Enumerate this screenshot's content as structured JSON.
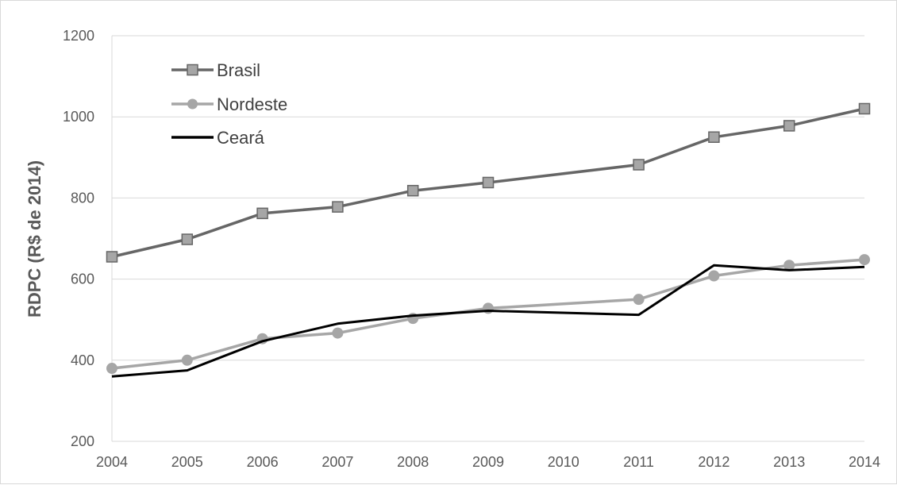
{
  "chart_data": {
    "type": "line",
    "xlabel": "",
    "ylabel": "RDPC (R$ de 2014)",
    "x": [
      2004,
      2005,
      2006,
      2007,
      2008,
      2009,
      2010,
      2011,
      2012,
      2013,
      2014
    ],
    "ylim": [
      200,
      1200
    ],
    "yticks": [
      200,
      400,
      600,
      800,
      1000,
      1200
    ],
    "grid": "horizontal",
    "legend_position": "top-left",
    "series": [
      {
        "name": "Brasil",
        "color": "#666666",
        "marker": "square",
        "x": [
          2004,
          2005,
          2006,
          2007,
          2008,
          2009,
          2011,
          2012,
          2013,
          2014
        ],
        "values": [
          655,
          698,
          762,
          778,
          818,
          838,
          882,
          950,
          978,
          1020
        ]
      },
      {
        "name": "Nordeste",
        "color": "#a6a6a6",
        "marker": "circle",
        "x": [
          2004,
          2005,
          2006,
          2007,
          2008,
          2009,
          2011,
          2012,
          2013,
          2014
        ],
        "values": [
          380,
          400,
          453,
          467,
          503,
          528,
          550,
          608,
          634,
          648
        ]
      },
      {
        "name": "Ceará",
        "color": "#000000",
        "marker": "none",
        "x": [
          2004,
          2005,
          2006,
          2007,
          2008,
          2009,
          2011,
          2012,
          2013,
          2014
        ],
        "values": [
          360,
          375,
          447,
          490,
          510,
          522,
          512,
          634,
          622,
          630
        ]
      }
    ]
  }
}
